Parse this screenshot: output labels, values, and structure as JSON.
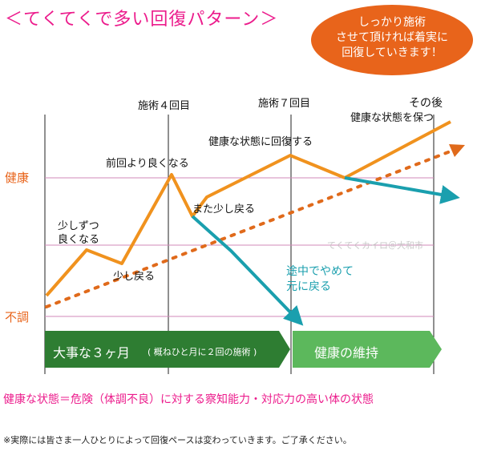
{
  "title": "＜てくてくで多い回復パターン＞",
  "bubble": {
    "line1": "しっかり施術",
    "line2": "させて頂ければ着実に",
    "line3": "回復していきます！"
  },
  "axis": {
    "healthy": "健康",
    "unwell": "不調"
  },
  "milestones": {
    "session4": "施術４回目",
    "session7": "施術７回目",
    "after": "その後"
  },
  "annotations": {
    "gradual_line1": "少しずつ",
    "gradual_line2": "良くなる",
    "slight_return1": "少し戻る",
    "better_than_last": "前回より良くなる",
    "slight_return2": "また少し戻る",
    "recover_healthy": "健康な状態に回復する",
    "keep_healthy": "健康な状態を保つ",
    "stop_line1": "途中でやめて",
    "stop_line2": "元に戻る"
  },
  "phases": {
    "important_main": "大事な３ヶ月",
    "important_sub": "( 概ねひと月に２回の施術 )",
    "maintain": "健康の維持"
  },
  "footer_definition": "健康な状態＝危険（体調不良）に対する察知能力・対応力の高い体の状態",
  "footer_note": "※実際には皆さま一人ひとりによって回復ペースは変わっていきます。ご了承ください。",
  "watermark": "てくてくカイロ＠大和市",
  "colors": {
    "title": "#ec1c8c",
    "bubble": "#e8641b",
    "orange_line": "#f0921e",
    "dotted_trend": "#e06a1b",
    "teal_line": "#1a9fae",
    "arrow_dark": "#2e7d32",
    "arrow_light": "#5cb85c",
    "guide_line": "#d08ab8"
  }
}
